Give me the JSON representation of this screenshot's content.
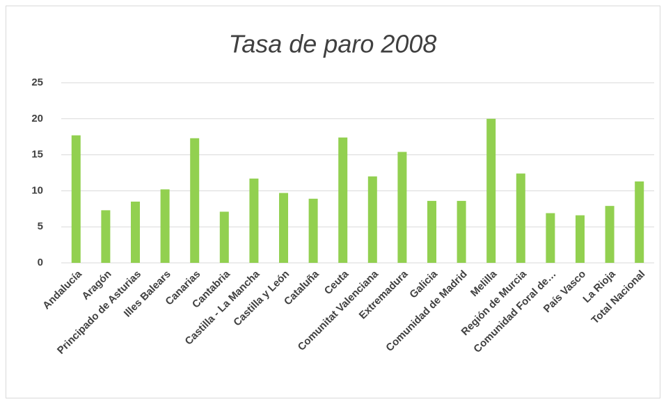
{
  "chart_data": {
    "type": "bar",
    "title": "Tasa de paro 2008",
    "categories": [
      "Andalucía",
      "Aragón",
      "Principado de Asturias",
      "Illes Balears",
      "Canarias",
      "Cantabria",
      "Castilla - La Mancha",
      "Castilla y León",
      "Cataluña",
      "Ceuta",
      "Comunitat Valenciana",
      "Extremadura",
      "Galicia",
      "Comunidad de Madrid",
      "Melilla",
      "Región de Murcia",
      "Comunidad Foral de…",
      "País Vasco",
      "La Rioja",
      "Total Nacional"
    ],
    "values": [
      17.7,
      7.3,
      8.5,
      10.2,
      17.3,
      7.1,
      11.7,
      9.7,
      8.9,
      17.4,
      12.0,
      15.4,
      8.6,
      8.6,
      20.0,
      12.4,
      6.9,
      6.6,
      7.9,
      11.3
    ],
    "color": "#92d050",
    "ylim": [
      0,
      25
    ],
    "yticks": [
      0,
      5,
      10,
      15,
      20,
      25
    ],
    "grid": true
  }
}
